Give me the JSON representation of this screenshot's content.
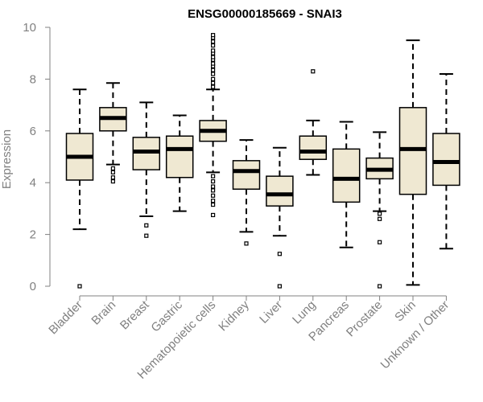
{
  "colors": {
    "box_fill": "#EFE8D2",
    "box_stroke": "#000000",
    "axis": "#808080",
    "title": "#000000"
  },
  "chart_data": {
    "type": "boxplot",
    "title": "ENSG00000185669 - SNAI3",
    "xlabel": "",
    "ylabel": "Expression",
    "ylim": [
      0,
      10
    ],
    "yticks": [
      0,
      2,
      4,
      6,
      8,
      10
    ],
    "categories": [
      "Bladder",
      "Brain",
      "Breast",
      "Gastric",
      "Hematopoietic cells",
      "Kidney",
      "Liver",
      "Lung",
      "Pancreas",
      "Prostate",
      "Skin",
      "Unknown / Other"
    ],
    "boxes": [
      {
        "name": "Bladder",
        "whisker_low": 2.2,
        "q1": 4.1,
        "median": 5.0,
        "q3": 5.9,
        "whisker_high": 7.6,
        "outliers": [
          0.0
        ]
      },
      {
        "name": "Brain",
        "whisker_low": 4.7,
        "q1": 6.0,
        "median": 6.5,
        "q3": 6.9,
        "whisker_high": 7.85,
        "outliers": [
          4.05,
          4.2,
          4.4,
          4.55
        ]
      },
      {
        "name": "Breast",
        "whisker_low": 2.7,
        "q1": 4.5,
        "median": 5.2,
        "q3": 5.75,
        "whisker_high": 7.1,
        "outliers": [
          1.95,
          2.35
        ]
      },
      {
        "name": "Gastric",
        "whisker_low": 2.9,
        "q1": 4.2,
        "median": 5.3,
        "q3": 5.8,
        "whisker_high": 6.6,
        "outliers": []
      },
      {
        "name": "Hematopoietic cells",
        "whisker_low": 4.4,
        "q1": 5.6,
        "median": 6.0,
        "q3": 6.4,
        "whisker_high": 7.6,
        "outliers": [
          2.75,
          3.15,
          3.3,
          3.5,
          3.7,
          3.85,
          4.05,
          4.25,
          7.7,
          7.85,
          8.0,
          8.2,
          8.35,
          8.5,
          8.6,
          8.75,
          8.85,
          9.0,
          9.1,
          9.3,
          9.45,
          9.6,
          9.7
        ]
      },
      {
        "name": "Kidney",
        "whisker_low": 2.1,
        "q1": 3.75,
        "median": 4.45,
        "q3": 4.85,
        "whisker_high": 5.65,
        "outliers": [
          1.65
        ]
      },
      {
        "name": "Liver",
        "whisker_low": 1.95,
        "q1": 3.1,
        "median": 3.55,
        "q3": 4.25,
        "whisker_high": 5.35,
        "outliers": [
          0.0,
          1.25
        ]
      },
      {
        "name": "Lung",
        "whisker_low": 4.3,
        "q1": 4.9,
        "median": 5.2,
        "q3": 5.8,
        "whisker_high": 6.4,
        "outliers": [
          8.3
        ]
      },
      {
        "name": "Pancreas",
        "whisker_low": 1.5,
        "q1": 3.25,
        "median": 4.15,
        "q3": 5.3,
        "whisker_high": 6.35,
        "outliers": []
      },
      {
        "name": "Prostate",
        "whisker_low": 2.9,
        "q1": 4.15,
        "median": 4.5,
        "q3": 4.95,
        "whisker_high": 5.95,
        "outliers": [
          0.0,
          1.7,
          2.6,
          2.8
        ]
      },
      {
        "name": "Skin",
        "whisker_low": 0.05,
        "q1": 3.55,
        "median": 5.3,
        "q3": 6.9,
        "whisker_high": 9.5,
        "outliers": []
      },
      {
        "name": "Unknown / Other",
        "whisker_low": 1.45,
        "q1": 3.9,
        "median": 4.8,
        "q3": 5.9,
        "whisker_high": 8.2,
        "outliers": []
      }
    ]
  }
}
